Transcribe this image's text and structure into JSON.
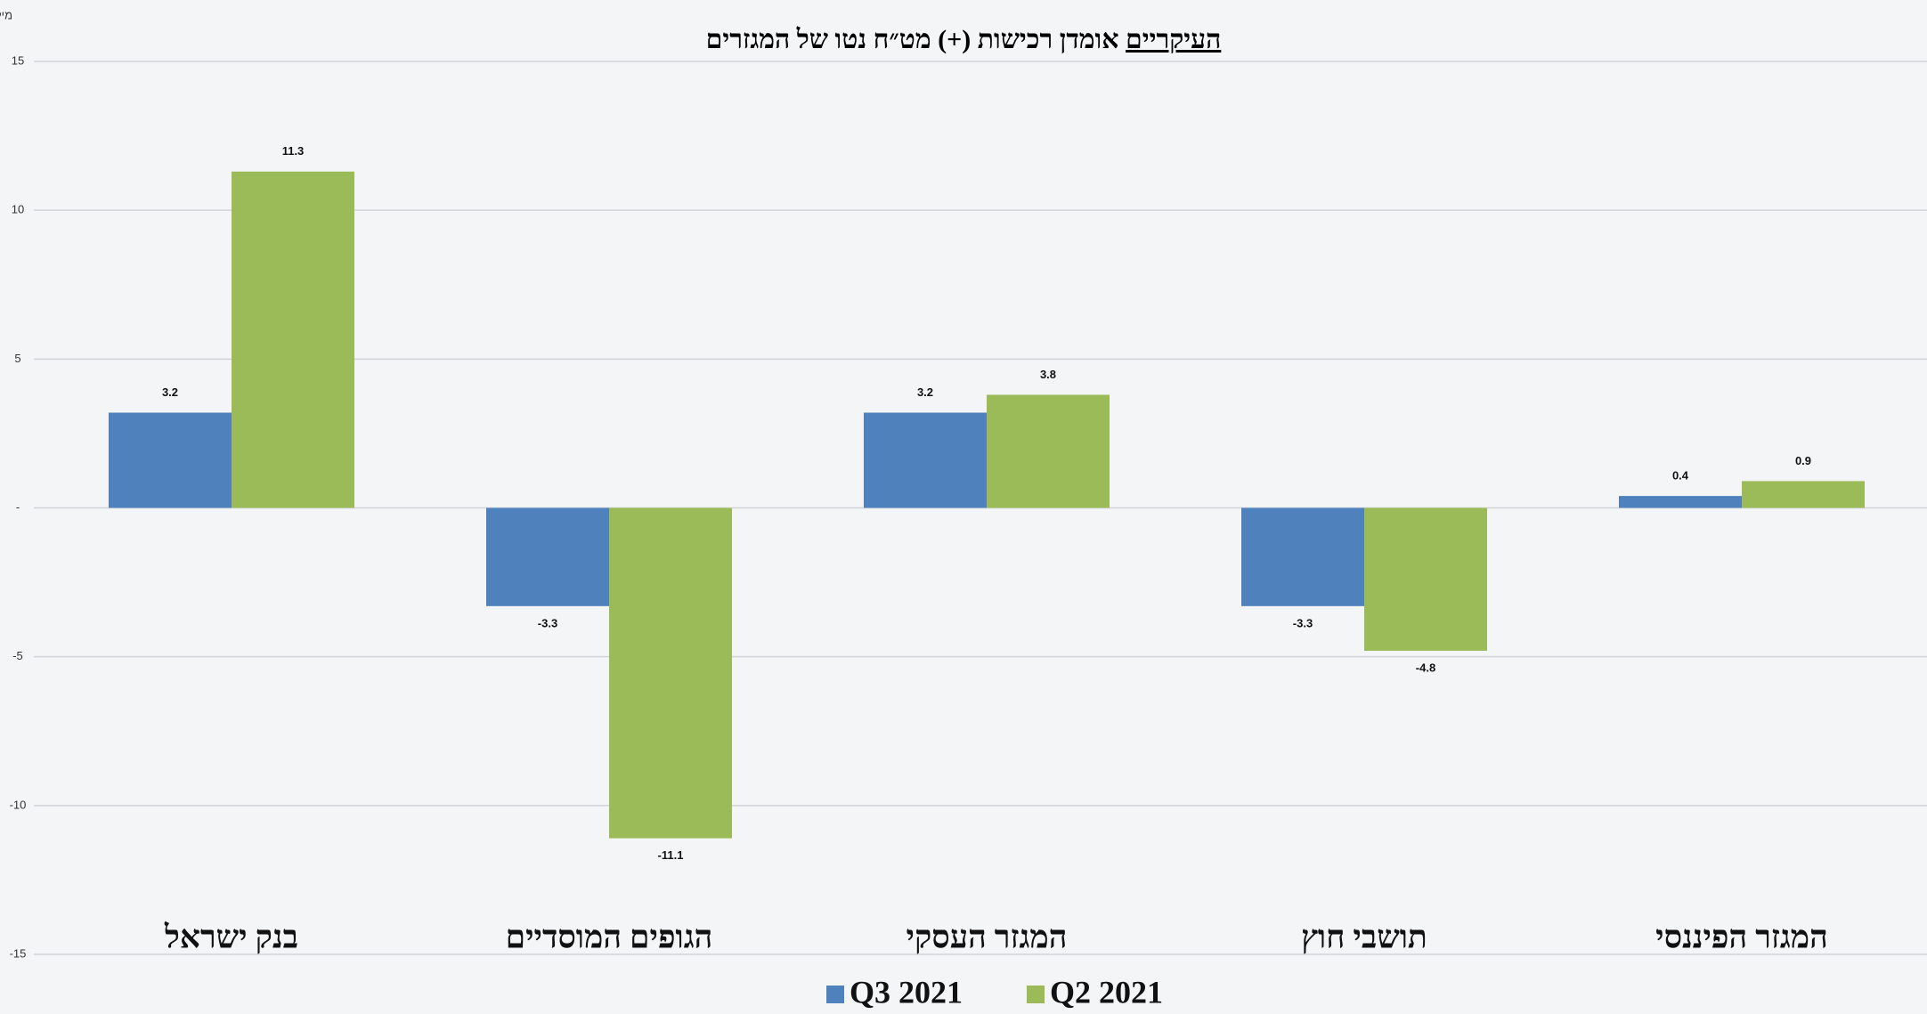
{
  "chart_data": {
    "type": "bar",
    "title": "אומדן רכישות (+) מט״ח נטו של המגזרים",
    "title_underlined": "העיקריים",
    "y_label": "מיליארדי $",
    "categories": [
      "בנק ישראל",
      "הגופים המוסדיים",
      "המגזר העסקי",
      "תושבי חוץ",
      "המגזר הפיננסי"
    ],
    "series": [
      {
        "name": "Q3 2021",
        "color": "#4f81bd",
        "values": [
          3.2,
          -3.3,
          3.2,
          -3.3,
          0.4
        ]
      },
      {
        "name": "Q2 2021",
        "color": "#9bbb59",
        "values": [
          11.3,
          -11.1,
          3.8,
          -4.8,
          0.9
        ]
      }
    ],
    "ylim": [
      -15,
      15
    ],
    "yticks": [
      -15,
      -10,
      -5,
      {
        "value": 0,
        "label": "-"
      },
      5,
      10,
      15
    ],
    "grid": true
  }
}
